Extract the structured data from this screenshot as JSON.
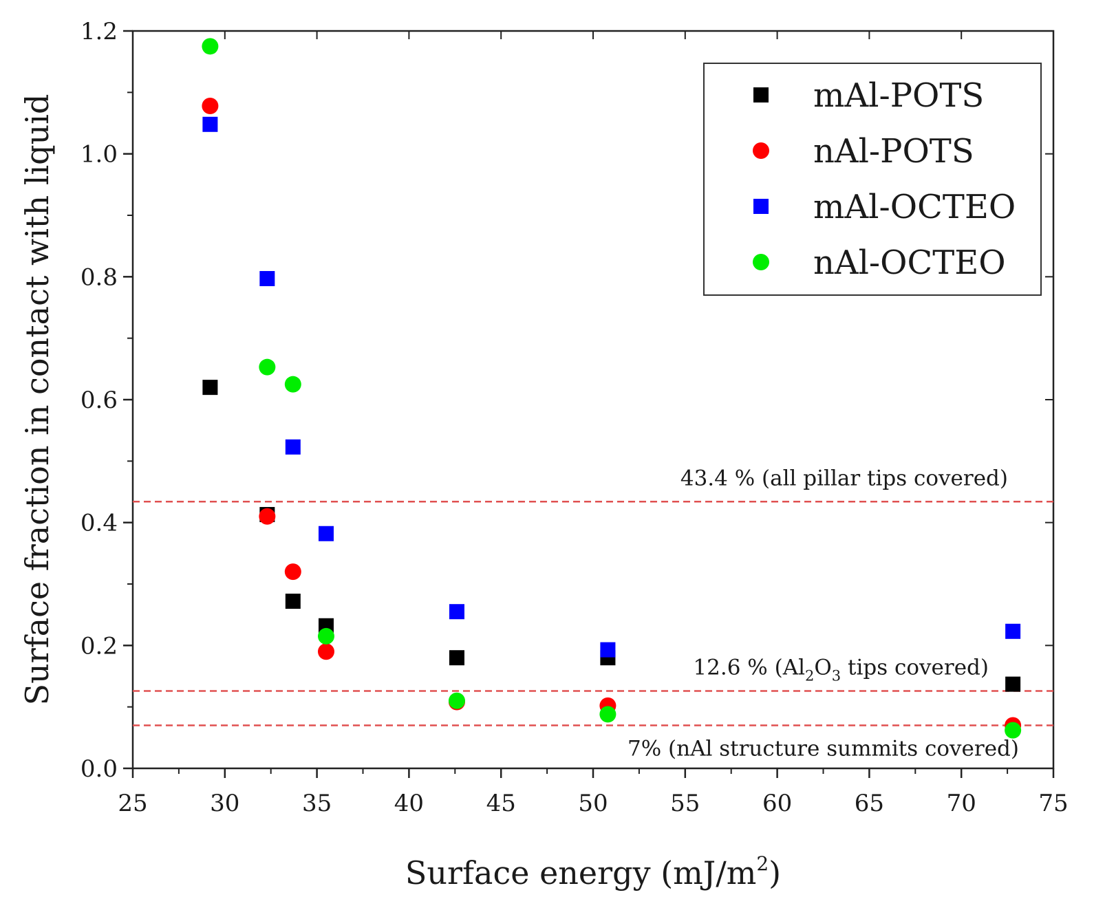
{
  "chart_data": {
    "type": "scatter",
    "xlabel": "Surface energy (mJ/m",
    "xlabel_sup": "2",
    "xlabel_end": ")",
    "ylabel": "Surface fraction in contact with liquid",
    "xlim": [
      25,
      75
    ],
    "ylim": [
      0,
      1.2
    ],
    "x_ticks": [
      "25",
      "30",
      "35",
      "40",
      "45",
      "50",
      "55",
      "60",
      "65",
      "70",
      "75"
    ],
    "y_ticks": [
      "0.0",
      "0.2",
      "0.4",
      "0.6",
      "0.8",
      "1.0",
      "1.2"
    ],
    "legend_position": "top-right",
    "series": [
      {
        "name": "mAl-POTS",
        "marker": "square",
        "color": "#000000",
        "points": [
          {
            "x": 29.2,
            "y": 0.62
          },
          {
            "x": 32.3,
            "y": 0.413
          },
          {
            "x": 33.7,
            "y": 0.272
          },
          {
            "x": 35.5,
            "y": 0.232
          },
          {
            "x": 42.6,
            "y": 0.18
          },
          {
            "x": 50.8,
            "y": 0.18
          },
          {
            "x": 72.8,
            "y": 0.137
          }
        ]
      },
      {
        "name": "nAl-POTS",
        "marker": "circle",
        "color": "#ff0000",
        "points": [
          {
            "x": 29.2,
            "y": 1.078
          },
          {
            "x": 32.3,
            "y": 0.41
          },
          {
            "x": 33.7,
            "y": 0.32
          },
          {
            "x": 35.5,
            "y": 0.19
          },
          {
            "x": 42.6,
            "y": 0.108
          },
          {
            "x": 50.8,
            "y": 0.102
          },
          {
            "x": 72.8,
            "y": 0.07
          }
        ]
      },
      {
        "name": "mAl-OCTEO",
        "marker": "square",
        "color": "#0000ff",
        "points": [
          {
            "x": 29.2,
            "y": 1.048
          },
          {
            "x": 32.3,
            "y": 0.797
          },
          {
            "x": 33.7,
            "y": 0.523
          },
          {
            "x": 35.5,
            "y": 0.382
          },
          {
            "x": 42.6,
            "y": 0.255
          },
          {
            "x": 50.8,
            "y": 0.193
          },
          {
            "x": 72.8,
            "y": 0.223
          }
        ]
      },
      {
        "name": "nAl-OCTEO",
        "marker": "circle",
        "color": "#00ee00",
        "points": [
          {
            "x": 29.2,
            "y": 1.175
          },
          {
            "x": 32.3,
            "y": 0.653
          },
          {
            "x": 33.7,
            "y": 0.625
          },
          {
            "x": 35.5,
            "y": 0.215
          },
          {
            "x": 42.6,
            "y": 0.11
          },
          {
            "x": 50.8,
            "y": 0.088
          },
          {
            "x": 72.8,
            "y": 0.062
          }
        ]
      }
    ],
    "reference_lines": [
      {
        "y": 0.434,
        "color": "#e05050",
        "label": "43.4 % (all pillar tips covered)"
      },
      {
        "y": 0.126,
        "color": "#e05050",
        "label_pre": "12.6 % (Al",
        "label_sub1": "2",
        "label_mid": "O",
        "label_sub2": "3",
        "label_post": " tips covered)"
      },
      {
        "y": 0.07,
        "color": "#e05050",
        "label": "7% (nAl structure summits covered)"
      }
    ]
  }
}
